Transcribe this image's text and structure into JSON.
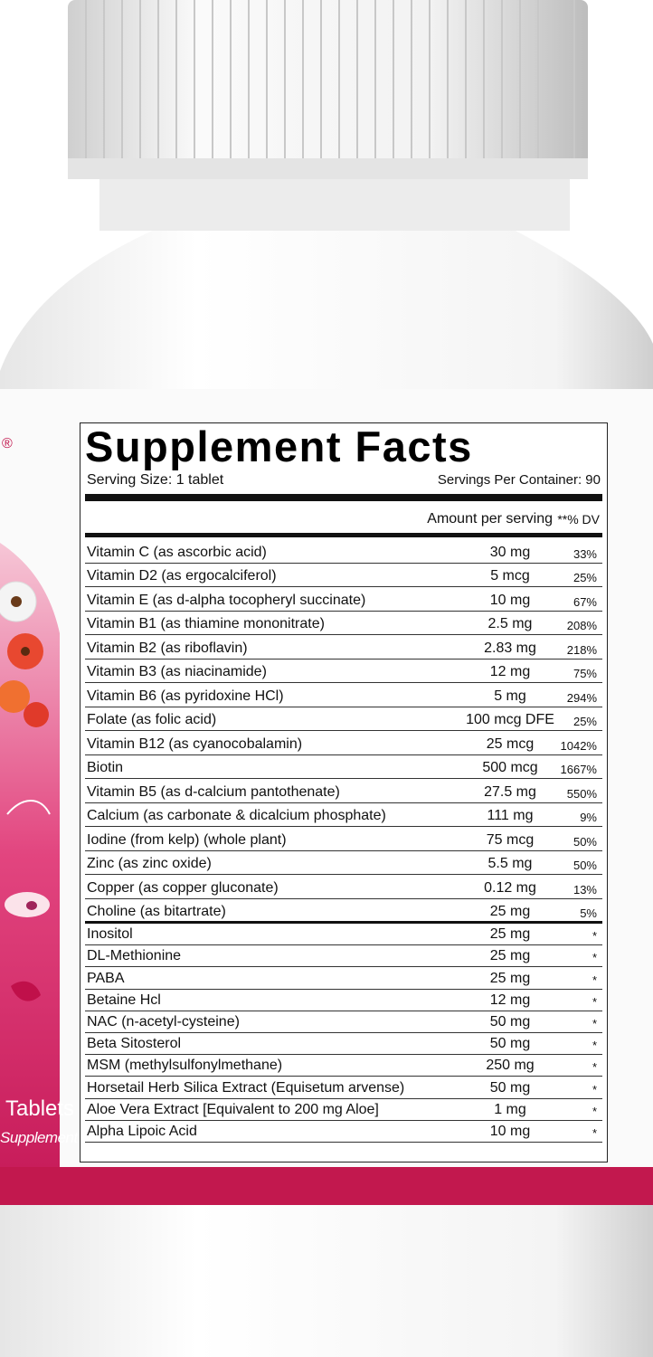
{
  "brand_side": {
    "registered": "®",
    "count_word": "Tablets",
    "descriptor": "Supplement"
  },
  "facts": {
    "title": "Supplement Facts",
    "serving_size": "Serving Size: 1 tablet",
    "servings_per_container": "Servings Per Container: 90",
    "amount_header": "Amount per serving",
    "dv_header": "**% DV",
    "vitamins_minerals": [
      {
        "name": "Vitamin C (as ascorbic acid)",
        "amount": "30 mg",
        "dv": "33%"
      },
      {
        "name": "Vitamin D2 (as ergocalciferol)",
        "amount": "5 mcg",
        "dv": "25%"
      },
      {
        "name": "Vitamin E (as d-alpha tocopheryl succinate)",
        "amount": "10 mg",
        "dv": "67%"
      },
      {
        "name": "Vitamin B1 (as thiamine mononitrate)",
        "amount": "2.5 mg",
        "dv": "208%"
      },
      {
        "name": "Vitamin B2 (as riboflavin)",
        "amount": "2.83 mg",
        "dv": "218%"
      },
      {
        "name": "Vitamin B3 (as niacinamide)",
        "amount": "12 mg",
        "dv": "75%"
      },
      {
        "name": "Vitamin B6 (as pyridoxine HCl)",
        "amount": "5 mg",
        "dv": "294%"
      },
      {
        "name": "Folate (as folic acid)",
        "amount": "100 mcg DFE",
        "dv": "25%"
      },
      {
        "name": "Vitamin B12 (as cyanocobalamin)",
        "amount": "25 mcg",
        "dv": "1042%"
      },
      {
        "name": "Biotin",
        "amount": "500 mcg",
        "dv": "1667%"
      },
      {
        "name": "Vitamin B5 (as d-calcium pantothenate)",
        "amount": "27.5 mg",
        "dv": "550%"
      },
      {
        "name": "Calcium (as carbonate & dicalcium phosphate)",
        "amount": "111 mg",
        "dv": "9%"
      },
      {
        "name": "Iodine (from kelp) (whole plant)",
        "amount": "75 mcg",
        "dv": "50%"
      },
      {
        "name": "Zinc (as zinc oxide)",
        "amount": "5.5 mg",
        "dv": "50%"
      },
      {
        "name": "Copper (as copper gluconate)",
        "amount": "0.12 mg",
        "dv": "13%"
      },
      {
        "name": "Choline (as bitartrate)",
        "amount": "25 mg",
        "dv": "5%"
      }
    ],
    "other_ingredients": [
      {
        "name": "Inositol",
        "amount": "25 mg",
        "dv": "*"
      },
      {
        "name": "DL-Methionine",
        "amount": "25 mg",
        "dv": "*"
      },
      {
        "name": "PABA",
        "amount": "25 mg",
        "dv": "*"
      },
      {
        "name": "Betaine Hcl",
        "amount": "12 mg",
        "dv": "*"
      },
      {
        "name": "NAC (n-acetyl-cysteine)",
        "amount": "50 mg",
        "dv": "*"
      },
      {
        "name": "Beta Sitosterol",
        "amount": "50 mg",
        "dv": "*"
      },
      {
        "name": "MSM (methylsulfonylmethane)",
        "amount": "250 mg",
        "dv": "*"
      },
      {
        "name": "Horsetail Herb Silica Extract (Equisetum arvense)",
        "amount": "50 mg",
        "dv": "*"
      },
      {
        "name": "Aloe Vera Extract [Equivalent to 200 mg Aloe]",
        "amount": "1 mg",
        "dv": "*"
      },
      {
        "name": "Alpha Lipoic Acid",
        "amount": "10 mg",
        "dv": "*"
      }
    ]
  }
}
